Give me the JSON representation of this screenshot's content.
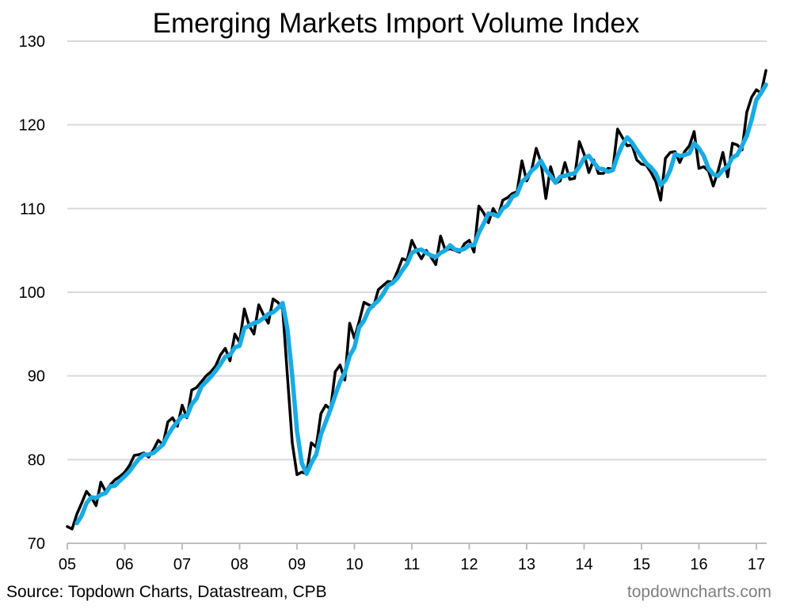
{
  "chart_data": {
    "type": "line",
    "title": "Emerging Markets Import Volume Index",
    "source": "Source: Topdown Charts, Datastream, CPB",
    "watermark": "topdowncharts.com",
    "xlabel": "",
    "ylabel": "",
    "ylim": [
      70,
      130
    ],
    "yticks": [
      70,
      80,
      90,
      100,
      110,
      120,
      130
    ],
    "xlim": [
      "2005-01",
      "2017-03"
    ],
    "xticks": [
      "05",
      "06",
      "07",
      "08",
      "09",
      "10",
      "11",
      "12",
      "13",
      "14",
      "15",
      "16",
      "17"
    ],
    "grid": "horizontal",
    "legend": "none",
    "x_start": "2005-01",
    "frequency": "monthly",
    "series": [
      {
        "color": "#000000",
        "start": "2005-01",
        "values": [
          72,
          71.7,
          73.5,
          74.8,
          76.2,
          75.5,
          74.5,
          77.3,
          76.2,
          77,
          77.6,
          78,
          78.5,
          79.3,
          80.5,
          80.6,
          80.8,
          80.3,
          81.2,
          82.3,
          81.8,
          84.5,
          85,
          84,
          86.5,
          85,
          88.3,
          88.6,
          89.3,
          90,
          90.5,
          91.2,
          92.5,
          93.3,
          91.8,
          95,
          94,
          98,
          96,
          95,
          98.5,
          97.3,
          96.3,
          99.2,
          98.8,
          98,
          90,
          82,
          78.2,
          78.5,
          78.3,
          82,
          81.5,
          85.5,
          86.5,
          86,
          90.5,
          91.3,
          89.5,
          96.3,
          94.5,
          96.5,
          98.8,
          98.5,
          98.3,
          100.3,
          100.8,
          101.3,
          101.2,
          102.5,
          104,
          103.8,
          106.2,
          105,
          104,
          105,
          104.2,
          103.3,
          106.7,
          105,
          105.2,
          105,
          104.8,
          105.8,
          106.2,
          104.8,
          110.3,
          109.5,
          108.3,
          110,
          109,
          111,
          111.3,
          111.8,
          112,
          115.7,
          113.3,
          114.5,
          117.2,
          115.5,
          111.2,
          115,
          113,
          113.3,
          115.5,
          113.5,
          113.6,
          118,
          116.5,
          114.3,
          115.8,
          114.2,
          114.2,
          114.8,
          114.7,
          119.5,
          118.5,
          117.5,
          117.6,
          115.8,
          115.3,
          115.2,
          114.3,
          113.2,
          111,
          116,
          116.7,
          116.8,
          115.5,
          116.8,
          117.5,
          119.2,
          114.8,
          115,
          114.5,
          112.7,
          114.5,
          116.7,
          113.8,
          117.8,
          117.6,
          117,
          121.5,
          123.3,
          124.2,
          123.8,
          126.5
        ]
      },
      {
        "color": "#1AABE3",
        "start": "2005-03",
        "values": [
          72.4,
          73.3,
          74.8,
          75.5,
          75.4,
          75.8,
          76.0,
          76.8,
          76.9,
          77.5,
          78.0,
          78.6,
          79.4,
          80.1,
          80.6,
          80.6,
          80.8,
          81.3,
          81.8,
          82.9,
          83.8,
          84.5,
          85.2,
          85.2,
          86.6,
          87.3,
          88.7,
          89.3,
          89.9,
          90.6,
          91.4,
          92.3,
          92.5,
          93.4,
          93.6,
          95.7,
          96.0,
          96.3,
          96.5,
          96.9,
          97.4,
          97.6,
          98.1,
          98.7,
          95.6,
          90.0,
          83.4,
          79.6,
          78.3,
          79.6,
          80.6,
          83.0,
          84.5,
          86.0,
          87.7,
          89.3,
          90.4,
          92.4,
          93.4,
          95.8,
          96.6,
          97.9,
          98.5,
          99.0,
          99.8,
          100.8,
          101.1,
          101.7,
          102.6,
          103.4,
          104.7,
          105.0,
          105.1,
          104.7,
          104.4,
          104.2,
          104.7,
          105.0,
          105.6,
          105.1,
          105.0,
          105.2,
          105.6,
          105.6,
          107.1,
          108.2,
          109.4,
          109.3,
          109.1,
          110.0,
          110.4,
          111.4,
          111.7,
          113.2,
          113.7,
          114.5,
          115.0,
          115.7,
          114.6,
          113.9,
          113.1,
          113.8,
          113.9,
          114.1,
          114.2,
          115.0,
          116.0,
          116.3,
          115.5,
          114.8,
          114.7,
          114.4,
          114.6,
          116.3,
          117.6,
          118.5,
          117.9,
          117.0,
          116.2,
          115.4,
          114.9,
          114.2,
          112.8,
          113.4,
          114.6,
          116.5,
          116.3,
          116.4,
          116.6,
          117.8,
          117.2,
          116.3,
          114.8,
          114.1,
          113.9,
          114.6,
          115.0,
          116.1,
          116.4,
          117.5,
          118.7,
          120.6,
          123.0,
          123.8,
          124.8
        ]
      }
    ]
  }
}
